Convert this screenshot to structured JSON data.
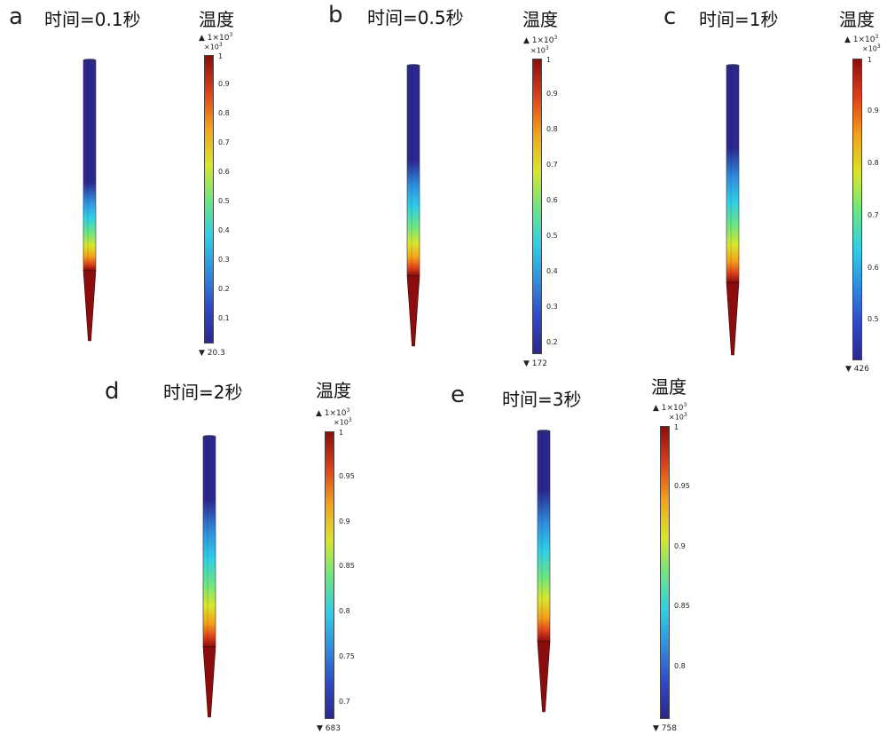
{
  "colors": {
    "rod_cold": "#2b2790",
    "rod_hot": "#8b0d0d",
    "colormap": [
      "#2b2790",
      "#2f48c8",
      "#2f8fe0",
      "#2ecfe8",
      "#6fe67f",
      "#d9e62a",
      "#f3a11a",
      "#e0421a",
      "#8b0d0d"
    ]
  },
  "panels": [
    {
      "letter": "a",
      "title": "时间=0.1秒",
      "colorbar_title": "温度",
      "max_label": "▲ 1×10",
      "max_exp": "3",
      "multiplier": "×10",
      "multiplier_exp": "3",
      "min_label": "▼ 20.3",
      "scale_min": 0.0203,
      "scale_max": 1.0,
      "ticks": [
        "1",
        "0.9",
        "0.8",
        "0.7",
        "0.6",
        "0.5",
        "0.4",
        "0.3",
        "0.2",
        "0.1"
      ],
      "tick_values": [
        1,
        0.9,
        0.8,
        0.7,
        0.6,
        0.5,
        0.4,
        0.3,
        0.2,
        0.1
      ],
      "hot_fraction": 0.42
    },
    {
      "letter": "b",
      "title": "时间=0.5秒",
      "colorbar_title": "温度",
      "max_label": "▲ 1×10",
      "max_exp": "3",
      "multiplier": "×10",
      "multiplier_exp": "3",
      "min_label": "▼ 172",
      "scale_min": 0.172,
      "scale_max": 1.0,
      "ticks": [
        "1",
        "0.9",
        "0.8",
        "0.7",
        "0.6",
        "0.5",
        "0.4",
        "0.3",
        "0.2"
      ],
      "tick_values": [
        1,
        0.9,
        0.8,
        0.7,
        0.6,
        0.5,
        0.4,
        0.3,
        0.2
      ],
      "hot_fraction": 0.55
    },
    {
      "letter": "c",
      "title": "时间=1秒",
      "colorbar_title": "温度",
      "max_label": "▲ 1×10",
      "max_exp": "3",
      "multiplier": "×10",
      "multiplier_exp": "3",
      "min_label": "▼ 426",
      "scale_min": 0.426,
      "scale_max": 1.0,
      "ticks": [
        "1",
        "0.9",
        "0.8",
        "0.7",
        "0.6",
        "0.5"
      ],
      "tick_values": [
        1,
        0.9,
        0.8,
        0.7,
        0.6,
        0.5
      ],
      "hot_fraction": 0.62
    },
    {
      "letter": "d",
      "title": "时间=2秒",
      "colorbar_title": "温度",
      "max_label": "▲ 1×10",
      "max_exp": "3",
      "multiplier": "×10",
      "multiplier_exp": "3",
      "min_label": "▼ 683",
      "scale_min": 0.683,
      "scale_max": 1.0,
      "ticks": [
        "1",
        "0.95",
        "0.9",
        "0.85",
        "0.8",
        "0.75",
        "0.7"
      ],
      "tick_values": [
        1,
        0.95,
        0.9,
        0.85,
        0.8,
        0.75,
        0.7
      ],
      "hot_fraction": 0.7
    },
    {
      "letter": "e",
      "title": "时间=3秒",
      "colorbar_title": "温度",
      "max_label": "▲ 1×10",
      "max_exp": "3",
      "multiplier": "×10",
      "multiplier_exp": "3",
      "min_label": "▼ 758",
      "scale_min": 0.758,
      "scale_max": 1.0,
      "ticks": [
        "1",
        "0.95",
        "0.9",
        "0.85",
        "0.8"
      ],
      "tick_values": [
        1,
        0.95,
        0.9,
        0.85,
        0.8
      ],
      "hot_fraction": 0.72
    }
  ]
}
